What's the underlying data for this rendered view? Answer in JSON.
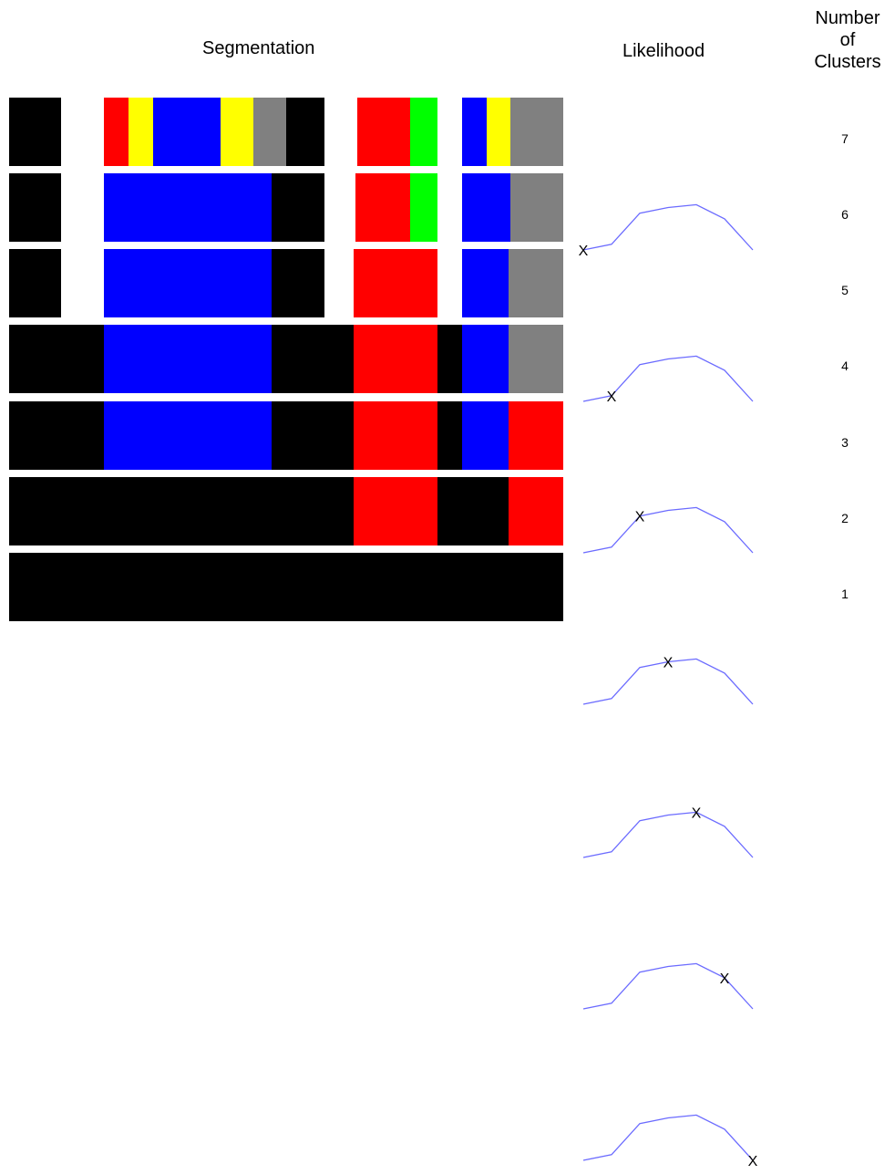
{
  "headers": {
    "segmentation": "Segmentation",
    "likelihood": "Likelihood",
    "clusters_line1": "Number",
    "clusters_line2": "of",
    "clusters_line3": "Clusters"
  },
  "colors": {
    "black": "#000000",
    "red": "#ff0000",
    "yellow": "#ffff00",
    "blue": "#0000ff",
    "gray": "#808080",
    "green": "#00ff00",
    "curve": "#6b6bff"
  },
  "likelihood_curve": [
    [
      0,
      0.0
    ],
    [
      1,
      0.1
    ],
    [
      2,
      0.65
    ],
    [
      3,
      0.75
    ],
    [
      4,
      0.8
    ],
    [
      5,
      0.55
    ],
    [
      6,
      0.0
    ]
  ],
  "rows": [
    {
      "clusters": "7",
      "marker_index": 0,
      "marker": "X",
      "segments": [
        {
          "color": "black",
          "from": 0,
          "to": 57
        },
        {
          "color": "red",
          "from": 104,
          "to": 131
        },
        {
          "color": "yellow",
          "from": 131,
          "to": 158
        },
        {
          "color": "blue",
          "from": 158,
          "to": 232
        },
        {
          "color": "yellow",
          "from": 232,
          "to": 268
        },
        {
          "color": "gray",
          "from": 268,
          "to": 304
        },
        {
          "color": "black",
          "from": 304,
          "to": 346
        },
        {
          "color": "red",
          "from": 382,
          "to": 440
        },
        {
          "color": "green",
          "from": 440,
          "to": 470
        },
        {
          "color": "blue",
          "from": 497,
          "to": 524
        },
        {
          "color": "yellow",
          "from": 524,
          "to": 550
        },
        {
          "color": "gray",
          "from": 550,
          "to": 608
        }
      ]
    },
    {
      "clusters": "6",
      "marker_index": 1,
      "marker": "X",
      "segments": [
        {
          "color": "black",
          "from": 0,
          "to": 57
        },
        {
          "color": "blue",
          "from": 104,
          "to": 288
        },
        {
          "color": "black",
          "from": 288,
          "to": 346
        },
        {
          "color": "red",
          "from": 380,
          "to": 440
        },
        {
          "color": "green",
          "from": 440,
          "to": 470
        },
        {
          "color": "blue",
          "from": 497,
          "to": 550
        },
        {
          "color": "gray",
          "from": 550,
          "to": 608
        }
      ]
    },
    {
      "clusters": "5",
      "marker_index": 2,
      "marker": "X",
      "segments": [
        {
          "color": "black",
          "from": 0,
          "to": 57
        },
        {
          "color": "blue",
          "from": 104,
          "to": 288
        },
        {
          "color": "black",
          "from": 288,
          "to": 346
        },
        {
          "color": "red",
          "from": 378,
          "to": 470
        },
        {
          "color": "blue",
          "from": 497,
          "to": 548
        },
        {
          "color": "gray",
          "from": 548,
          "to": 608
        }
      ]
    },
    {
      "clusters": "4",
      "marker_index": 3,
      "marker": "X",
      "segments": [
        {
          "color": "black",
          "from": 0,
          "to": 104
        },
        {
          "color": "blue",
          "from": 104,
          "to": 288
        },
        {
          "color": "black",
          "from": 288,
          "to": 378
        },
        {
          "color": "red",
          "from": 378,
          "to": 470
        },
        {
          "color": "black",
          "from": 470,
          "to": 497
        },
        {
          "color": "blue",
          "from": 497,
          "to": 548
        },
        {
          "color": "gray",
          "from": 548,
          "to": 608
        }
      ]
    },
    {
      "clusters": "3",
      "marker_index": 4,
      "marker": "X",
      "segments": [
        {
          "color": "black",
          "from": 0,
          "to": 104
        },
        {
          "color": "blue",
          "from": 104,
          "to": 288
        },
        {
          "color": "black",
          "from": 288,
          "to": 378
        },
        {
          "color": "red",
          "from": 378,
          "to": 470
        },
        {
          "color": "black",
          "from": 470,
          "to": 497
        },
        {
          "color": "blue",
          "from": 497,
          "to": 548
        },
        {
          "color": "red",
          "from": 548,
          "to": 608
        }
      ]
    },
    {
      "clusters": "2",
      "marker_index": 5,
      "marker": "X",
      "segments": [
        {
          "color": "black",
          "from": 0,
          "to": 378
        },
        {
          "color": "red",
          "from": 378,
          "to": 470
        },
        {
          "color": "black",
          "from": 470,
          "to": 548
        },
        {
          "color": "red",
          "from": 548,
          "to": 608
        }
      ]
    },
    {
      "clusters": "1",
      "marker_index": 6,
      "marker": "X",
      "segments": [
        {
          "color": "black",
          "from": 0,
          "to": 608
        }
      ]
    }
  ]
}
